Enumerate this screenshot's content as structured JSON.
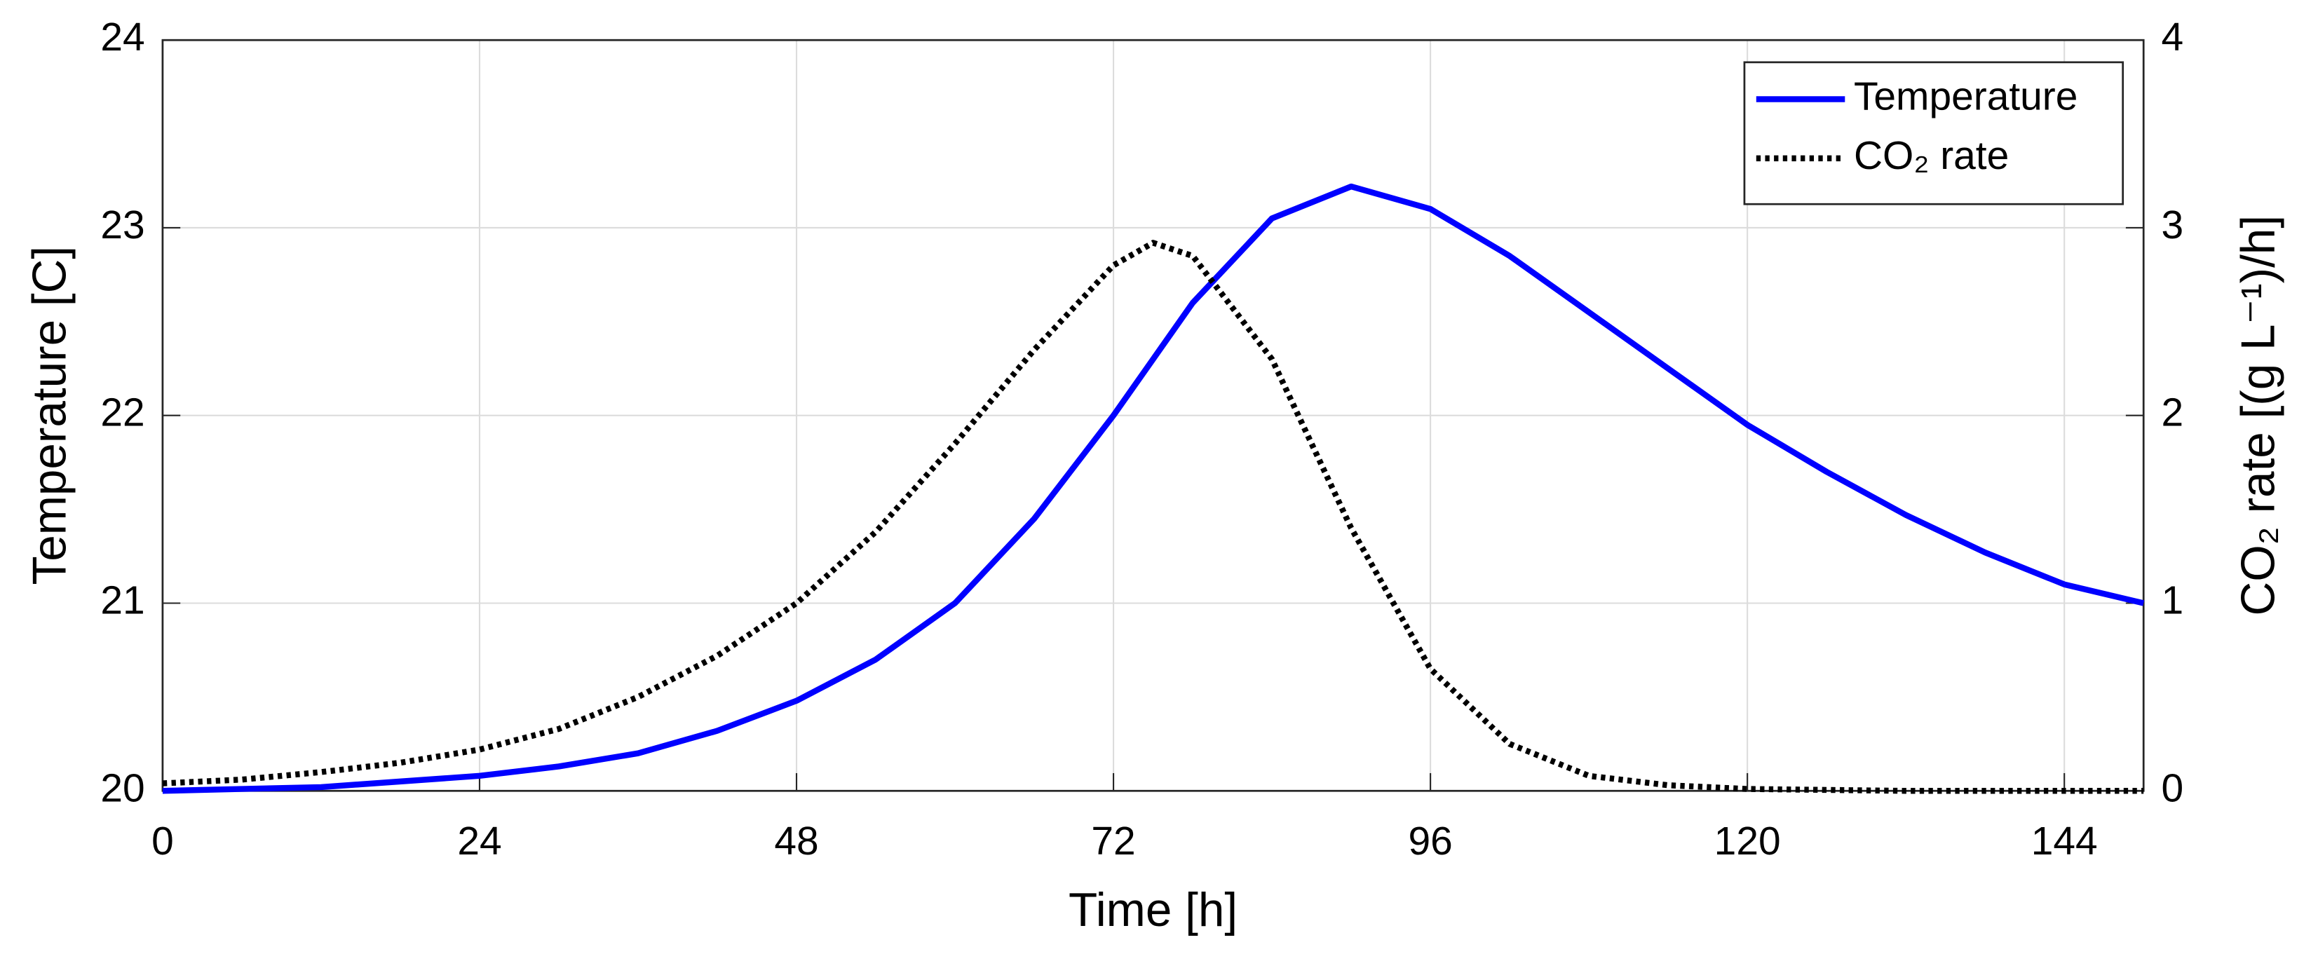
{
  "chart_data": {
    "type": "line",
    "xlabel": "Time [h]",
    "ylabel": "Temperature [C]",
    "y2label": "CO₂ rate [(g L⁻¹)/h]",
    "x": [
      0,
      6,
      12,
      18,
      24,
      30,
      36,
      42,
      48,
      54,
      60,
      66,
      72,
      75,
      78,
      84,
      90,
      96,
      102,
      108,
      114,
      120,
      126,
      132,
      138,
      144,
      150
    ],
    "series": [
      {
        "name": "Temperature",
        "color": "#0000ff",
        "style": "solid",
        "values": [
          20.0,
          20.01,
          20.02,
          20.05,
          20.08,
          20.13,
          20.2,
          20.32,
          20.48,
          20.7,
          21.0,
          21.45,
          22.0,
          22.3,
          22.6,
          23.05,
          23.22,
          23.1,
          22.85,
          22.55,
          22.25,
          21.95,
          21.7,
          21.47,
          21.27,
          21.1,
          21.0
        ]
      },
      {
        "name": "CO₂ rate",
        "color": "#000000",
        "style": "dotted",
        "axis": "y2",
        "values": [
          0.04,
          0.06,
          0.1,
          0.15,
          0.22,
          0.33,
          0.5,
          0.72,
          1.0,
          1.38,
          1.85,
          2.35,
          2.8,
          2.92,
          2.85,
          2.3,
          1.4,
          0.65,
          0.25,
          0.08,
          0.03,
          0.01,
          0.005,
          0,
          0,
          0,
          0
        ]
      }
    ],
    "xlim": [
      0,
      150
    ],
    "xticks": [
      0,
      24,
      48,
      72,
      96,
      120,
      144
    ],
    "ylim": [
      20,
      24
    ],
    "yticks": [
      20,
      21,
      22,
      23,
      24
    ],
    "y2lim": [
      0,
      4
    ],
    "y2ticks": [
      0,
      1,
      2,
      3,
      4
    ],
    "grid": true,
    "legend": "upper-right"
  }
}
